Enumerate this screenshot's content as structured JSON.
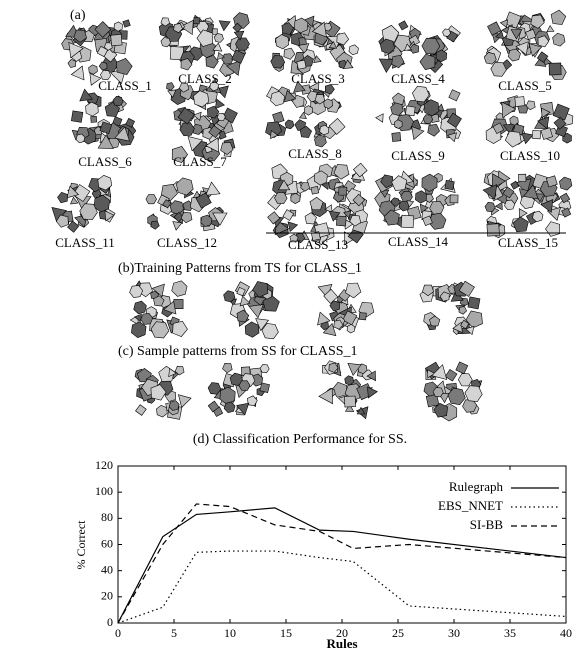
{
  "figure": {
    "panel_a": "(a)",
    "classes": [
      "CLASS_1",
      "CLASS_2",
      "CLASS_3",
      "CLASS_4",
      "CLASS_5",
      "CLASS_6",
      "CLASS_7",
      "CLASS_8",
      "CLASS_9",
      "CLASS_10",
      "CLASS_11",
      "CLASS_12",
      "CLASS_13",
      "CLASS_14",
      "CLASS_15"
    ],
    "panel_b": "(b)Training Patterns from TS for CLASS_1",
    "panel_c": "(c) Sample patterns from SS for CLASS_1"
  },
  "chart_data": {
    "type": "line",
    "title": "(d) Classification Performance for SS.",
    "x_label": "Rules",
    "y_label": "% Correct",
    "x": [
      0,
      4,
      7,
      10,
      14,
      18,
      21,
      26,
      40
    ],
    "series": [
      {
        "name": "Rulegraph",
        "color": "#000000",
        "style": "solid",
        "values": [
          0,
          66,
          83,
          85,
          88,
          71,
          70,
          64,
          50
        ]
      },
      {
        "name": "EBS_NNET",
        "color": "#000000",
        "style": "dotted",
        "values": [
          0,
          12,
          54,
          55,
          55,
          50,
          47,
          13,
          5
        ]
      },
      {
        "name": "SI-BB",
        "color": "#000000",
        "style": "dashed",
        "values": [
          0,
          60,
          91,
          89,
          75,
          70,
          57,
          60,
          50
        ]
      }
    ],
    "xlim": [
      0,
      40
    ],
    "ylim": [
      0,
      120
    ],
    "xticks": [
      0,
      5,
      10,
      15,
      20,
      25,
      30,
      35,
      40
    ],
    "yticks": [
      0,
      20,
      40,
      60,
      80,
      100,
      120
    ],
    "legend": "upper right"
  }
}
